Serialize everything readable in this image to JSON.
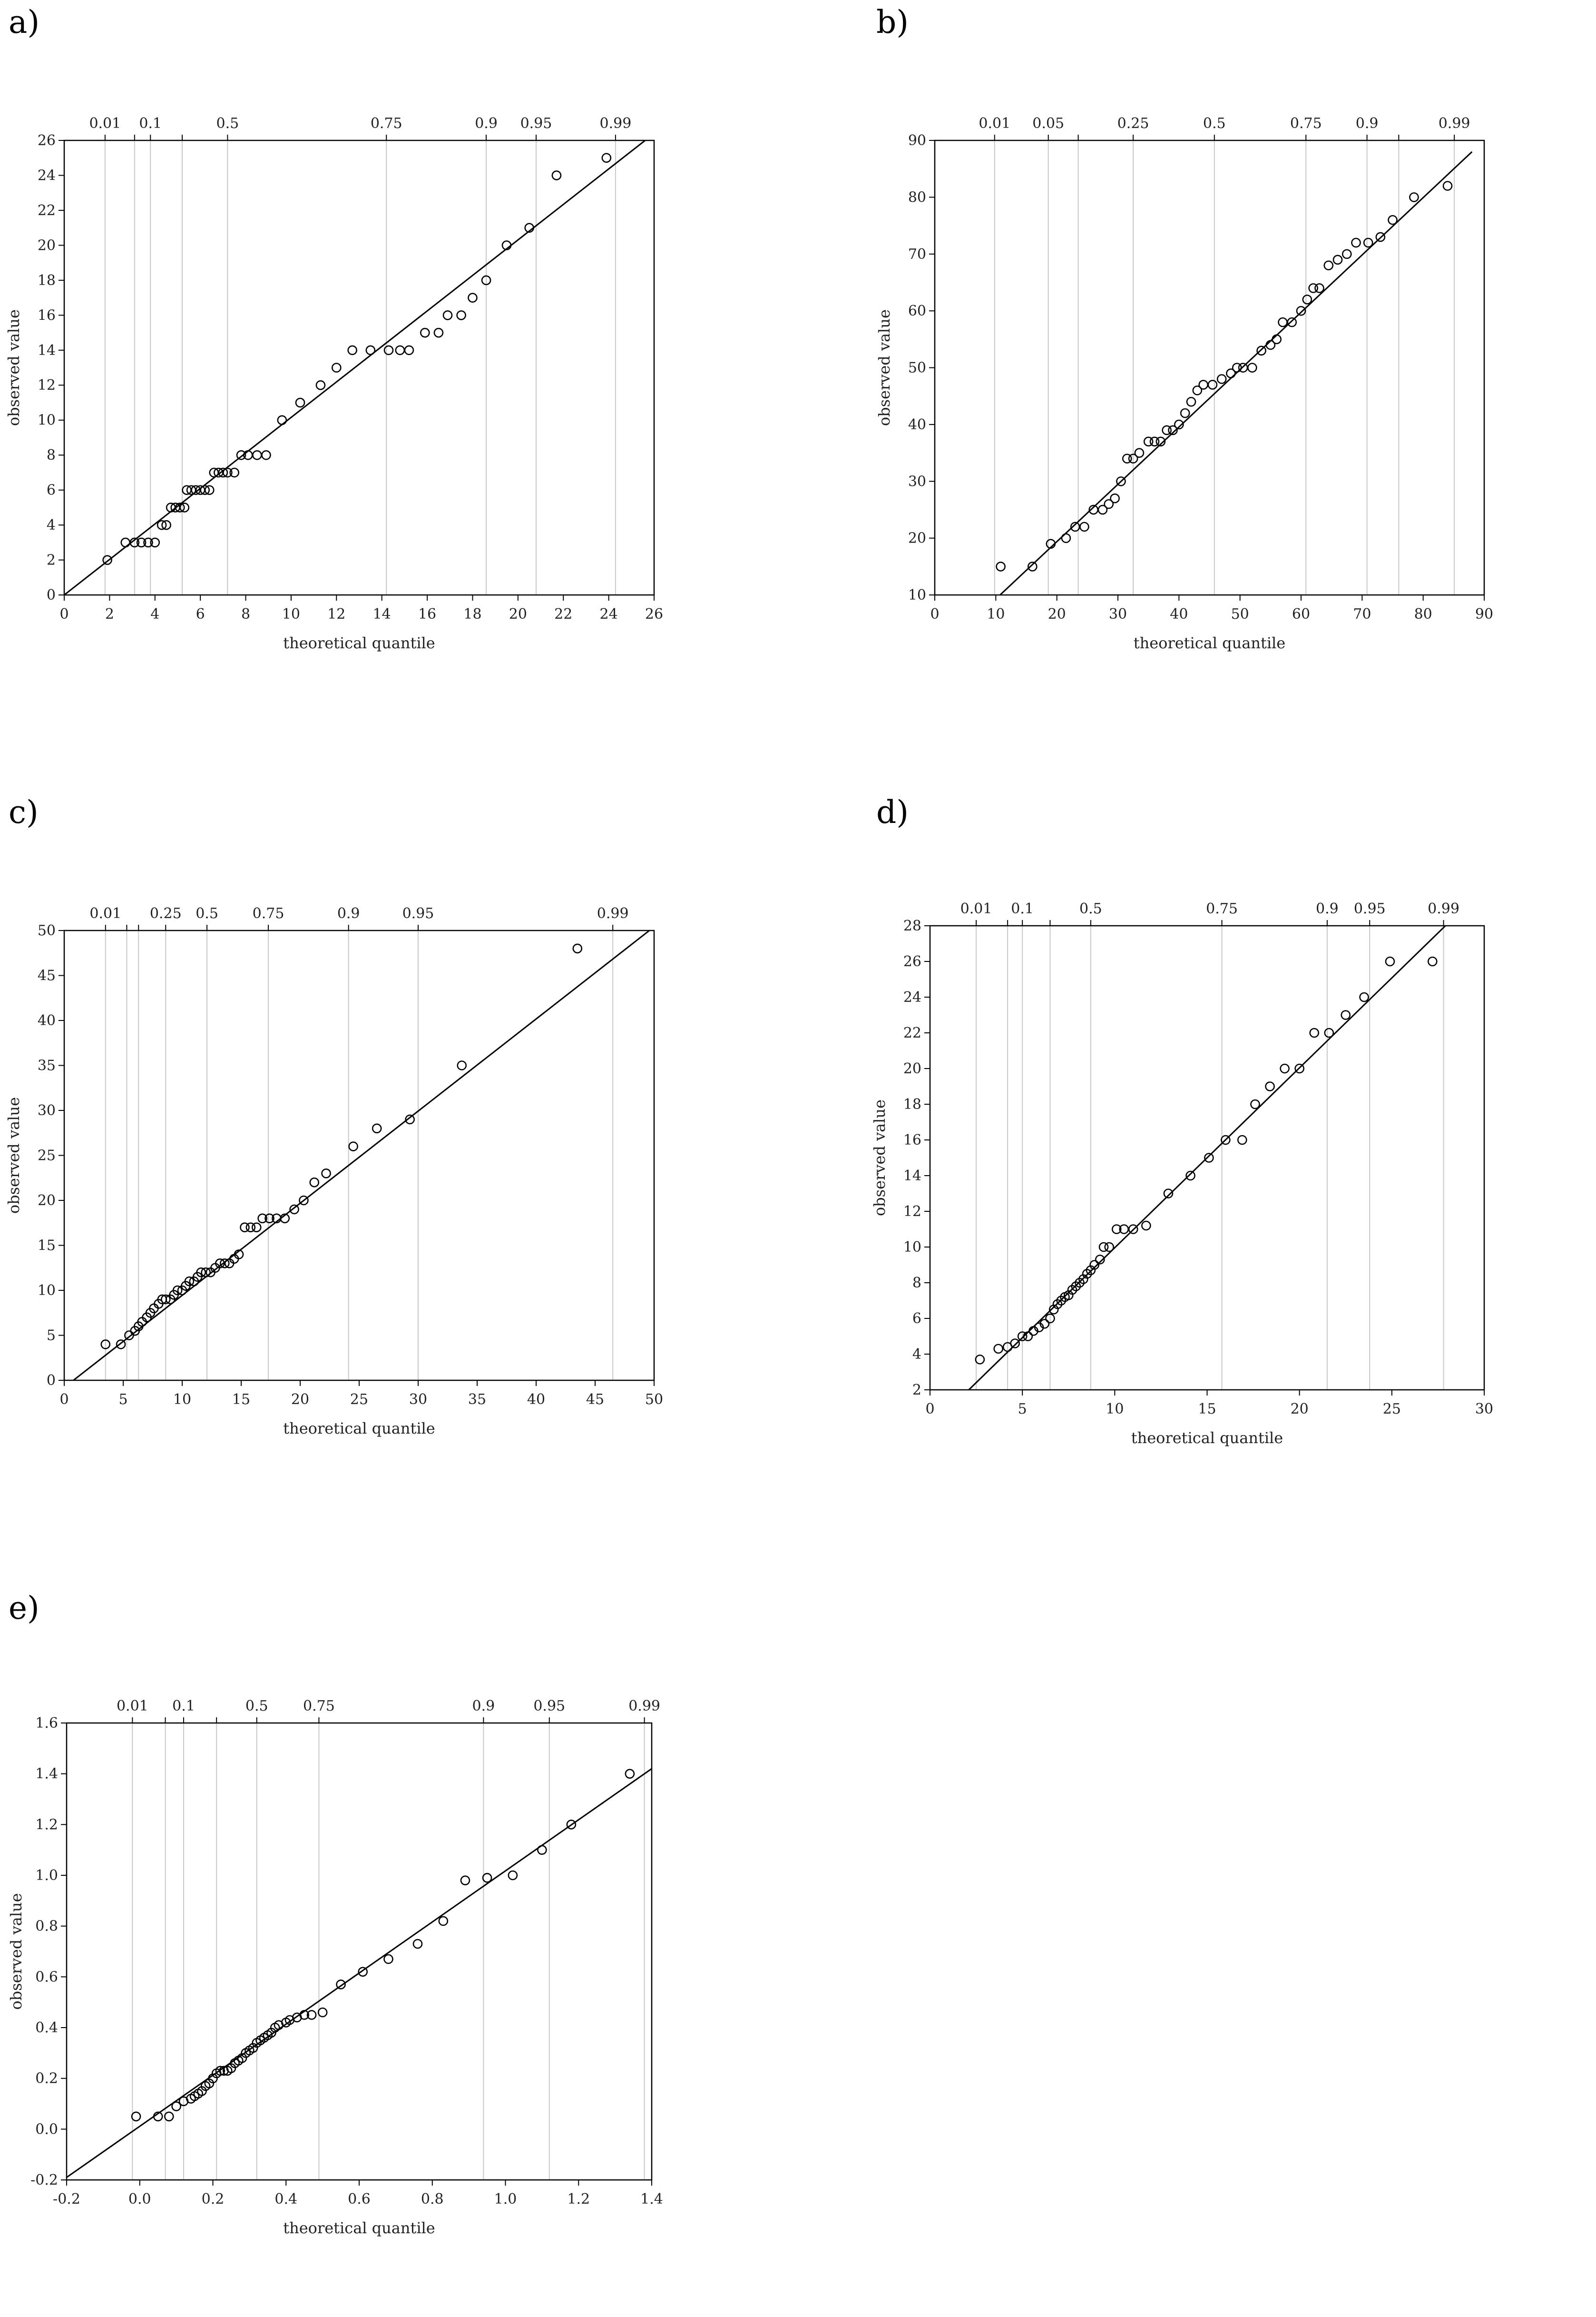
{
  "colors": {
    "vline": "#c8c8c8",
    "axis": "#000000",
    "marker": "#000000",
    "fit": "#000000"
  },
  "chart_data": [
    {
      "panel": "a)",
      "type": "scatter",
      "title": "",
      "xlabel": "theoretical quantile",
      "ylabel": "observed value",
      "xlim": [
        0,
        26
      ],
      "ylim": [
        0,
        26
      ],
      "xticks": [
        0,
        2,
        4,
        6,
        8,
        10,
        12,
        14,
        16,
        18,
        20,
        22,
        24,
        26
      ],
      "yticks": [
        0,
        2,
        4,
        6,
        8,
        10,
        12,
        14,
        16,
        18,
        20,
        22,
        24,
        26
      ],
      "prob_ticks": [
        {
          "x": 1.8,
          "label": "0.01"
        },
        {
          "x": 3.1,
          "label": ""
        },
        {
          "x": 3.8,
          "label": "0.1"
        },
        {
          "x": 5.2,
          "label": ""
        },
        {
          "x": 7.2,
          "label": "0.5"
        },
        {
          "x": 14.2,
          "label": "0.75"
        },
        {
          "x": 18.6,
          "label": "0.9"
        },
        {
          "x": 20.8,
          "label": "0.95"
        },
        {
          "x": 24.3,
          "label": "0.99"
        }
      ],
      "fit": [
        [
          0,
          0
        ],
        [
          26,
          26.4
        ]
      ],
      "points": [
        [
          1.9,
          2
        ],
        [
          2.7,
          3
        ],
        [
          3.1,
          3
        ],
        [
          3.4,
          3
        ],
        [
          3.7,
          3
        ],
        [
          4.0,
          3
        ],
        [
          4.3,
          4
        ],
        [
          4.5,
          4
        ],
        [
          4.7,
          5
        ],
        [
          4.9,
          5
        ],
        [
          5.1,
          5
        ],
        [
          5.3,
          5
        ],
        [
          5.4,
          6
        ],
        [
          5.6,
          6
        ],
        [
          5.8,
          6
        ],
        [
          6.0,
          6
        ],
        [
          6.2,
          6
        ],
        [
          6.4,
          6
        ],
        [
          6.6,
          7
        ],
        [
          6.8,
          7
        ],
        [
          7.0,
          7
        ],
        [
          7.2,
          7
        ],
        [
          7.5,
          7
        ],
        [
          7.8,
          8
        ],
        [
          8.1,
          8
        ],
        [
          8.5,
          8
        ],
        [
          8.9,
          8
        ],
        [
          9.6,
          10
        ],
        [
          10.4,
          11
        ],
        [
          11.3,
          12
        ],
        [
          12.0,
          13
        ],
        [
          12.7,
          14
        ],
        [
          13.5,
          14
        ],
        [
          14.3,
          14
        ],
        [
          14.8,
          14
        ],
        [
          15.2,
          14
        ],
        [
          15.9,
          15
        ],
        [
          16.5,
          15
        ],
        [
          16.9,
          16
        ],
        [
          17.5,
          16
        ],
        [
          18.0,
          17
        ],
        [
          18.6,
          18
        ],
        [
          19.5,
          20
        ],
        [
          20.5,
          21
        ],
        [
          21.7,
          24
        ],
        [
          23.9,
          25
        ]
      ]
    },
    {
      "panel": "b)",
      "type": "scatter",
      "title": "",
      "xlabel": "theoretical quantile",
      "ylabel": "observed value",
      "xlim": [
        0,
        90
      ],
      "ylim": [
        10,
        90
      ],
      "xticks": [
        0,
        10,
        20,
        30,
        40,
        50,
        60,
        70,
        80,
        90
      ],
      "yticks": [
        10,
        20,
        30,
        40,
        50,
        60,
        70,
        80,
        90
      ],
      "prob_ticks": [
        {
          "x": 9.8,
          "label": "0.01"
        },
        {
          "x": 18.6,
          "label": "0.05"
        },
        {
          "x": 23.5,
          "label": ""
        },
        {
          "x": 32.5,
          "label": "0.25"
        },
        {
          "x": 45.8,
          "label": "0.5"
        },
        {
          "x": 60.8,
          "label": "0.75"
        },
        {
          "x": 70.8,
          "label": "0.9"
        },
        {
          "x": 76.0,
          "label": ""
        },
        {
          "x": 85.1,
          "label": "0.99"
        }
      ],
      "fit": [
        [
          10.7,
          10
        ],
        [
          88,
          88
        ]
      ],
      "points": [
        [
          10.8,
          15
        ],
        [
          16,
          15
        ],
        [
          19,
          19
        ],
        [
          21.5,
          20
        ],
        [
          23,
          22
        ],
        [
          24.5,
          22
        ],
        [
          26,
          25
        ],
        [
          27.5,
          25
        ],
        [
          28.5,
          26
        ],
        [
          29.5,
          27
        ],
        [
          30.5,
          30
        ],
        [
          31.5,
          34
        ],
        [
          32.5,
          34
        ],
        [
          33.5,
          35
        ],
        [
          35,
          37
        ],
        [
          36,
          37
        ],
        [
          37,
          37
        ],
        [
          38,
          39
        ],
        [
          39,
          39
        ],
        [
          40,
          40
        ],
        [
          41,
          42
        ],
        [
          42,
          44
        ],
        [
          43,
          46
        ],
        [
          44,
          47
        ],
        [
          45.5,
          47
        ],
        [
          47,
          48
        ],
        [
          48.5,
          49
        ],
        [
          49.5,
          50
        ],
        [
          50.5,
          50
        ],
        [
          52,
          50
        ],
        [
          53.5,
          53
        ],
        [
          55,
          54
        ],
        [
          56,
          55
        ],
        [
          57,
          58
        ],
        [
          58.5,
          58
        ],
        [
          60,
          60
        ],
        [
          61,
          62
        ],
        [
          62,
          64
        ],
        [
          63,
          64
        ],
        [
          64.5,
          68
        ],
        [
          66,
          69
        ],
        [
          67.5,
          70
        ],
        [
          69,
          72
        ],
        [
          71,
          72
        ],
        [
          73,
          73
        ],
        [
          75,
          76
        ],
        [
          78.5,
          80
        ],
        [
          84,
          82
        ]
      ]
    },
    {
      "panel": "c)",
      "type": "scatter",
      "title": "",
      "xlabel": "theoretical quantile",
      "ylabel": "observed value",
      "xlim": [
        0,
        50
      ],
      "ylim": [
        0,
        50
      ],
      "xticks": [
        0,
        5,
        10,
        15,
        20,
        25,
        30,
        35,
        40,
        45,
        50
      ],
      "yticks": [
        0,
        5,
        10,
        15,
        20,
        25,
        30,
        35,
        40,
        45,
        50
      ],
      "prob_ticks": [
        {
          "x": 3.5,
          "label": "0.01"
        },
        {
          "x": 5.3,
          "label": ""
        },
        {
          "x": 6.3,
          "label": ""
        },
        {
          "x": 8.6,
          "label": "0.25"
        },
        {
          "x": 12.1,
          "label": "0.5"
        },
        {
          "x": 17.3,
          "label": "0.75"
        },
        {
          "x": 24.1,
          "label": "0.9"
        },
        {
          "x": 30.0,
          "label": "0.95"
        },
        {
          "x": 46.5,
          "label": "0.99"
        }
      ],
      "fit": [
        [
          0,
          -0.8
        ],
        [
          49.6,
          50
        ]
      ],
      "points": [
        [
          3.5,
          4
        ],
        [
          4.8,
          4
        ],
        [
          5.5,
          5
        ],
        [
          6,
          5.5
        ],
        [
          6.3,
          6
        ],
        [
          6.6,
          6.5
        ],
        [
          7,
          7
        ],
        [
          7.3,
          7.5
        ],
        [
          7.6,
          8
        ],
        [
          8,
          8.5
        ],
        [
          8.3,
          9
        ],
        [
          8.6,
          9
        ],
        [
          9,
          9
        ],
        [
          9.3,
          9.5
        ],
        [
          9.6,
          10
        ],
        [
          10,
          10
        ],
        [
          10.3,
          10.5
        ],
        [
          10.6,
          11
        ],
        [
          11,
          11
        ],
        [
          11.3,
          11.5
        ],
        [
          11.6,
          12
        ],
        [
          12,
          12
        ],
        [
          12.4,
          12
        ],
        [
          12.8,
          12.5
        ],
        [
          13.2,
          13
        ],
        [
          13.6,
          13
        ],
        [
          14,
          13
        ],
        [
          14.4,
          13.5
        ],
        [
          14.8,
          14
        ],
        [
          15.3,
          17
        ],
        [
          15.8,
          17
        ],
        [
          16.3,
          17
        ],
        [
          16.8,
          18
        ],
        [
          17.4,
          18
        ],
        [
          18,
          18
        ],
        [
          18.7,
          18
        ],
        [
          19.5,
          19
        ],
        [
          20.3,
          20
        ],
        [
          21.2,
          22
        ],
        [
          22.2,
          23
        ],
        [
          24.5,
          26
        ],
        [
          26.5,
          28
        ],
        [
          29.3,
          29
        ],
        [
          33.7,
          35
        ],
        [
          43.5,
          48
        ]
      ]
    },
    {
      "panel": "d)",
      "type": "scatter",
      "title": "",
      "xlabel": "theoretical quantile",
      "ylabel": "observed value",
      "xlim": [
        0,
        30
      ],
      "ylim": [
        2,
        28
      ],
      "xticks": [
        0,
        5,
        10,
        15,
        20,
        25,
        30
      ],
      "yticks": [
        2,
        4,
        6,
        8,
        10,
        12,
        14,
        16,
        18,
        20,
        22,
        24,
        26,
        28
      ],
      "prob_ticks": [
        {
          "x": 2.5,
          "label": "0.01"
        },
        {
          "x": 4.2,
          "label": ""
        },
        {
          "x": 5.0,
          "label": "0.1"
        },
        {
          "x": 6.5,
          "label": ""
        },
        {
          "x": 8.7,
          "label": "0.5"
        },
        {
          "x": 15.8,
          "label": "0.75"
        },
        {
          "x": 21.5,
          "label": "0.9"
        },
        {
          "x": 23.8,
          "label": "0.95"
        },
        {
          "x": 27.8,
          "label": "0.99"
        }
      ],
      "fit": [
        [
          2.1,
          2
        ],
        [
          27.9,
          28
        ]
      ],
      "points": [
        [
          2.7,
          3.7
        ],
        [
          3.7,
          4.3
        ],
        [
          4.2,
          4.4
        ],
        [
          4.6,
          4.6
        ],
        [
          5.0,
          5.0
        ],
        [
          5.3,
          5.0
        ],
        [
          5.6,
          5.3
        ],
        [
          5.9,
          5.5
        ],
        [
          6.2,
          5.7
        ],
        [
          6.5,
          6.0
        ],
        [
          6.7,
          6.5
        ],
        [
          6.9,
          6.8
        ],
        [
          7.1,
          7.0
        ],
        [
          7.3,
          7.2
        ],
        [
          7.5,
          7.3
        ],
        [
          7.7,
          7.6
        ],
        [
          7.9,
          7.8
        ],
        [
          8.1,
          8.0
        ],
        [
          8.3,
          8.2
        ],
        [
          8.5,
          8.5
        ],
        [
          8.7,
          8.7
        ],
        [
          8.9,
          9.0
        ],
        [
          9.2,
          9.3
        ],
        [
          9.4,
          10.0
        ],
        [
          9.7,
          10.0
        ],
        [
          10.1,
          11.0
        ],
        [
          10.5,
          11.0
        ],
        [
          11.0,
          11.0
        ],
        [
          11.7,
          11.2
        ],
        [
          12.9,
          13.0
        ],
        [
          14.1,
          14.0
        ],
        [
          15.1,
          15.0
        ],
        [
          16.0,
          16.0
        ],
        [
          16.9,
          16.0
        ],
        [
          17.6,
          18.0
        ],
        [
          18.4,
          19.0
        ],
        [
          19.2,
          20.0
        ],
        [
          20.0,
          20.0
        ],
        [
          20.8,
          22.0
        ],
        [
          21.6,
          22.0
        ],
        [
          22.5,
          23.0
        ],
        [
          23.5,
          24.0
        ],
        [
          24.9,
          26.0
        ],
        [
          27.2,
          26.0
        ]
      ]
    },
    {
      "panel": "e)",
      "type": "scatter",
      "title": "",
      "xlabel": "theoretical quantile",
      "ylabel": "observed value",
      "xlim": [
        -0.2,
        1.4
      ],
      "ylim": [
        -0.2,
        1.6
      ],
      "xticks": [
        -0.2,
        0.0,
        0.2,
        0.4,
        0.6,
        0.8,
        1.0,
        1.2,
        1.4
      ],
      "xtick_labels": [
        "-0.2",
        "0.0",
        "0.2",
        "0.4",
        "0.6",
        "0.8",
        "1.0",
        "1.2",
        "1.4"
      ],
      "yticks": [
        -0.2,
        0.0,
        0.2,
        0.4,
        0.6,
        0.8,
        1.0,
        1.2,
        1.4,
        1.6
      ],
      "ytick_labels": [
        "-0.2",
        "0.0",
        "0.2",
        "0.4",
        "0.6",
        "0.8",
        "1.0",
        "1.2",
        "1.4",
        "1.6"
      ],
      "prob_ticks": [
        {
          "x": -0.02,
          "label": "0.01"
        },
        {
          "x": 0.07,
          "label": ""
        },
        {
          "x": 0.12,
          "label": "0.1"
        },
        {
          "x": 0.21,
          "label": ""
        },
        {
          "x": 0.32,
          "label": "0.5"
        },
        {
          "x": 0.49,
          "label": "0.75"
        },
        {
          "x": 0.94,
          "label": "0.9"
        },
        {
          "x": 1.12,
          "label": "0.95"
        },
        {
          "x": 1.38,
          "label": "0.99"
        }
      ],
      "fit": [
        [
          -0.2,
          -0.19
        ],
        [
          1.4,
          1.42
        ]
      ],
      "points": [
        [
          -0.01,
          0.05
        ],
        [
          0.05,
          0.05
        ],
        [
          0.08,
          0.05
        ],
        [
          0.1,
          0.09
        ],
        [
          0.12,
          0.11
        ],
        [
          0.14,
          0.12
        ],
        [
          0.15,
          0.13
        ],
        [
          0.16,
          0.14
        ],
        [
          0.17,
          0.15
        ],
        [
          0.18,
          0.17
        ],
        [
          0.19,
          0.18
        ],
        [
          0.2,
          0.2
        ],
        [
          0.21,
          0.22
        ],
        [
          0.22,
          0.23
        ],
        [
          0.23,
          0.23
        ],
        [
          0.24,
          0.23
        ],
        [
          0.25,
          0.24
        ],
        [
          0.26,
          0.26
        ],
        [
          0.27,
          0.27
        ],
        [
          0.28,
          0.28
        ],
        [
          0.29,
          0.3
        ],
        [
          0.3,
          0.31
        ],
        [
          0.31,
          0.32
        ],
        [
          0.32,
          0.34
        ],
        [
          0.33,
          0.35
        ],
        [
          0.34,
          0.36
        ],
        [
          0.35,
          0.37
        ],
        [
          0.36,
          0.38
        ],
        [
          0.37,
          0.4
        ],
        [
          0.38,
          0.41
        ],
        [
          0.4,
          0.42
        ],
        [
          0.41,
          0.43
        ],
        [
          0.43,
          0.44
        ],
        [
          0.45,
          0.45
        ],
        [
          0.47,
          0.45
        ],
        [
          0.5,
          0.46
        ],
        [
          0.55,
          0.57
        ],
        [
          0.61,
          0.62
        ],
        [
          0.68,
          0.67
        ],
        [
          0.76,
          0.73
        ],
        [
          0.83,
          0.82
        ],
        [
          0.89,
          0.98
        ],
        [
          0.95,
          0.99
        ],
        [
          1.02,
          1.0
        ],
        [
          1.1,
          1.1
        ],
        [
          1.18,
          1.2
        ],
        [
          1.34,
          1.4
        ]
      ]
    }
  ]
}
